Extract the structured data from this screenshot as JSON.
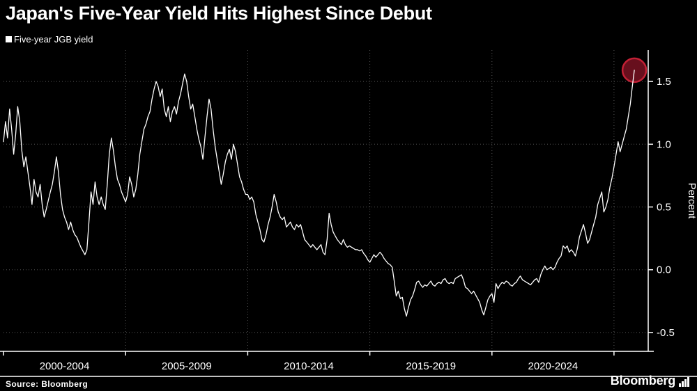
{
  "header": {
    "title": "Japan's Five-Year Yield Hits Highest Since Debut"
  },
  "legend": {
    "label": "Five-year JGB yield",
    "swatch_color": "#ffffff"
  },
  "footer": {
    "source": "Source: Bloomberg",
    "logo_text": "Bloomberg"
  },
  "chart_data": {
    "type": "line",
    "title": "Japan's Five-Year Yield Hits Highest Since Debut",
    "series_name": "Five-year JGB yield",
    "ylabel": "Percent",
    "ylabel_side": "right",
    "ylim": [
      -0.65,
      1.75
    ],
    "yticks": [
      1.5,
      1.0,
      0.5,
      0.0,
      -0.5
    ],
    "ytick_labels": [
      "1.5",
      "1.0",
      "0.5",
      "0.0",
      "-0.5"
    ],
    "xlim": [
      2000,
      2026.4
    ],
    "x_gridline_years": [
      2005,
      2010,
      2015,
      2020,
      2025
    ],
    "x_tick_years": [
      2000,
      2005,
      2010,
      2015,
      2020,
      2025
    ],
    "x_axis_labels": [
      {
        "label": "2000-2004",
        "center_year": 2002.5
      },
      {
        "label": "2005-2009",
        "center_year": 2007.5
      },
      {
        "label": "2010-2014",
        "center_year": 2012.5
      },
      {
        "label": "2015-2019",
        "center_year": 2017.5
      },
      {
        "label": "2020-2024",
        "center_year": 2022.5
      }
    ],
    "grid": true,
    "grid_color": "#565656",
    "axis_color": "#ffffff",
    "line_color": "#ffffff",
    "background_color": "#000000",
    "x_start_year": 2000.0,
    "x_step_years": 0.0833333,
    "values": [
      1.02,
      1.18,
      1.05,
      1.28,
      1.12,
      0.92,
      1.08,
      1.3,
      1.18,
      0.95,
      0.82,
      0.9,
      0.78,
      0.66,
      0.52,
      0.72,
      0.62,
      0.58,
      0.68,
      0.52,
      0.42,
      0.48,
      0.55,
      0.62,
      0.68,
      0.78,
      0.9,
      0.78,
      0.6,
      0.48,
      0.42,
      0.38,
      0.32,
      0.38,
      0.32,
      0.28,
      0.26,
      0.22,
      0.18,
      0.15,
      0.12,
      0.16,
      0.38,
      0.62,
      0.52,
      0.7,
      0.58,
      0.52,
      0.58,
      0.52,
      0.48,
      0.68,
      0.92,
      1.05,
      0.95,
      0.82,
      0.72,
      0.68,
      0.62,
      0.58,
      0.54,
      0.6,
      0.74,
      0.68,
      0.58,
      0.64,
      0.76,
      0.92,
      1.02,
      1.12,
      1.16,
      1.22,
      1.26,
      1.36,
      1.44,
      1.5,
      1.46,
      1.38,
      1.44,
      1.28,
      1.22,
      1.3,
      1.18,
      1.26,
      1.3,
      1.24,
      1.34,
      1.4,
      1.48,
      1.56,
      1.5,
      1.38,
      1.28,
      1.32,
      1.22,
      1.12,
      1.04,
      0.98,
      0.88,
      1.06,
      1.22,
      1.36,
      1.28,
      1.12,
      0.98,
      0.88,
      0.78,
      0.68,
      0.76,
      0.86,
      0.92,
      0.96,
      0.88,
      1.0,
      0.94,
      0.84,
      0.74,
      0.7,
      0.64,
      0.6,
      0.6,
      0.56,
      0.58,
      0.54,
      0.44,
      0.38,
      0.32,
      0.24,
      0.22,
      0.28,
      0.36,
      0.42,
      0.5,
      0.6,
      0.54,
      0.46,
      0.42,
      0.4,
      0.42,
      0.34,
      0.36,
      0.38,
      0.34,
      0.32,
      0.36,
      0.34,
      0.36,
      0.3,
      0.24,
      0.22,
      0.2,
      0.18,
      0.2,
      0.18,
      0.16,
      0.18,
      0.2,
      0.14,
      0.12,
      0.24,
      0.45,
      0.36,
      0.3,
      0.27,
      0.24,
      0.22,
      0.2,
      0.24,
      0.2,
      0.18,
      0.19,
      0.18,
      0.17,
      0.16,
      0.16,
      0.15,
      0.16,
      0.13,
      0.11,
      0.08,
      0.06,
      0.09,
      0.12,
      0.1,
      0.12,
      0.14,
      0.12,
      0.09,
      0.07,
      0.05,
      0.04,
      0.02,
      -0.09,
      -0.21,
      -0.17,
      -0.23,
      -0.22,
      -0.31,
      -0.37,
      -0.3,
      -0.24,
      -0.21,
      -0.16,
      -0.1,
      -0.09,
      -0.12,
      -0.14,
      -0.12,
      -0.13,
      -0.11,
      -0.09,
      -0.12,
      -0.13,
      -0.11,
      -0.1,
      -0.11,
      -0.08,
      -0.07,
      -0.1,
      -0.11,
      -0.1,
      -0.11,
      -0.07,
      -0.06,
      -0.05,
      -0.04,
      -0.08,
      -0.14,
      -0.15,
      -0.17,
      -0.19,
      -0.17,
      -0.2,
      -0.23,
      -0.26,
      -0.32,
      -0.36,
      -0.3,
      -0.24,
      -0.21,
      -0.19,
      -0.26,
      -0.11,
      -0.15,
      -0.12,
      -0.1,
      -0.11,
      -0.09,
      -0.1,
      -0.12,
      -0.13,
      -0.11,
      -0.1,
      -0.07,
      -0.05,
      -0.08,
      -0.09,
      -0.1,
      -0.11,
      -0.12,
      -0.1,
      -0.08,
      -0.07,
      -0.1,
      -0.04,
      0.0,
      0.03,
      0.0,
      0.01,
      0.02,
      0.0,
      0.02,
      0.06,
      0.09,
      0.11,
      0.19,
      0.17,
      0.19,
      0.14,
      0.16,
      0.14,
      0.11,
      0.17,
      0.26,
      0.31,
      0.36,
      0.29,
      0.21,
      0.24,
      0.3,
      0.36,
      0.42,
      0.52,
      0.57,
      0.62,
      0.46,
      0.5,
      0.56,
      0.66,
      0.73,
      0.82,
      0.92,
      1.02,
      0.94,
      1.0,
      1.06,
      1.12,
      1.22,
      1.32,
      1.46,
      1.59
    ],
    "highlight_last_point": {
      "x_year": 2025.83,
      "value": 1.59,
      "radius_px": 17,
      "fill": "#70101f",
      "stroke": "#c22035"
    }
  }
}
